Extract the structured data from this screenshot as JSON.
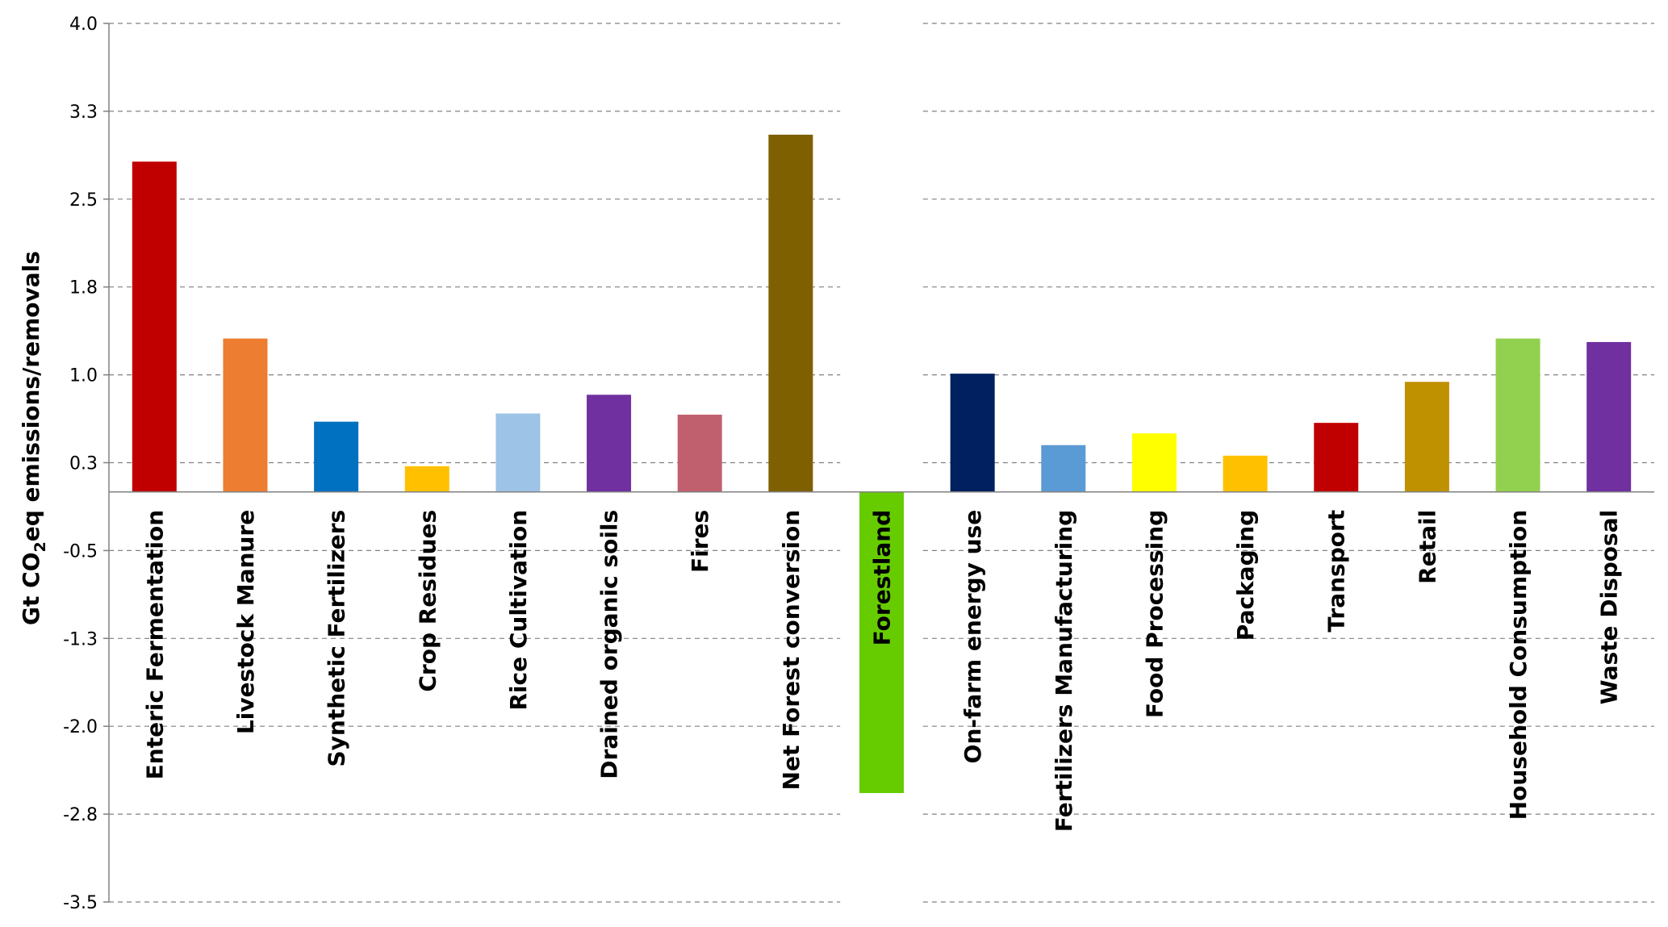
{
  "chart_data": {
    "type": "bar",
    "ylabel": {
      "prefix": "Gt CO",
      "subscript": "2",
      "suffix": "eq emissions/removals"
    },
    "ylim": [
      -3.5,
      4.0
    ],
    "y_ticks": [
      "4.0",
      "3.3",
      "2.5",
      "1.8",
      "1.0",
      "0.3",
      "-0.5",
      "-1.3",
      "-2.0",
      "-2.8",
      "-3.5"
    ],
    "grid": true,
    "legend": "none",
    "categories": [
      "Enteric Fermentation",
      "Livestock Manure",
      "Synthetic Fertilizers",
      "Crop Residues",
      "Rice Cultivation",
      "Drained organic soils",
      "Fires",
      "Net Forest conversion",
      "Forestland",
      "On-farm energy use",
      "Fertilizers Manufacturing",
      "Food Processing",
      "Packaging",
      "Transport",
      "Retail",
      "Household Consumption",
      "Waste Disposal"
    ],
    "values": [
      2.82,
      1.31,
      0.6,
      0.22,
      0.67,
      0.83,
      0.66,
      3.05,
      -2.57,
      1.01,
      0.4,
      0.5,
      0.31,
      0.59,
      0.94,
      1.31,
      1.28
    ],
    "colors": [
      "#C00000",
      "#ED7D31",
      "#0070C0",
      "#FFC000",
      "#9DC3E6",
      "#7030A0",
      "#C0606E",
      "#7F6000",
      "#66CC00",
      "#002060",
      "#5B9BD5",
      "#FFFF00",
      "#FFC000",
      "#C00000",
      "#BF9000",
      "#92D050",
      "#7030A0"
    ]
  }
}
